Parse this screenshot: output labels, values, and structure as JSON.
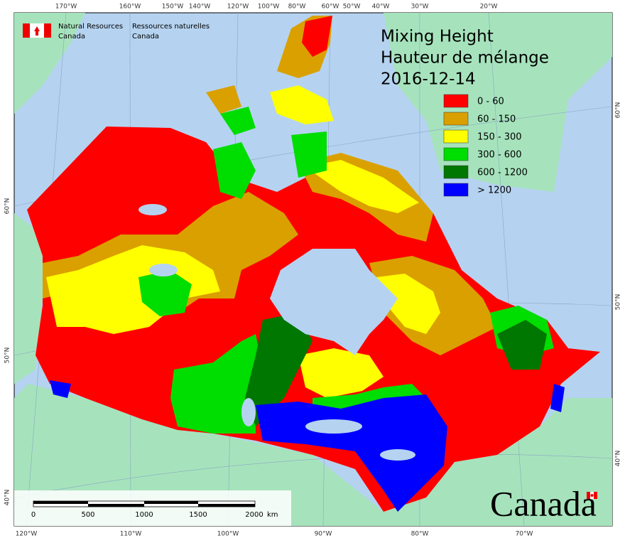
{
  "header": {
    "agency_en": [
      "Natural Resources",
      "Canada"
    ],
    "agency_fr": [
      "Ressources naturelles",
      "Canada"
    ]
  },
  "title": {
    "lines": [
      "Mixing Height",
      "Hauteur de mélange",
      "2016-12-14"
    ]
  },
  "legend": [
    {
      "label": "0 - 60",
      "color": "#ff0000"
    },
    {
      "label": "60 - 150",
      "color": "#daa000"
    },
    {
      "label": "150 - 300",
      "color": "#ffff00"
    },
    {
      "label": "300 - 600",
      "color": "#00dd00"
    },
    {
      "label": "600 - 1200",
      "color": "#007700"
    },
    {
      "label": "> 1200",
      "color": "#0000ff"
    }
  ],
  "graticule": {
    "top": [
      "170°W",
      "160°W",
      "150°W",
      "140°W",
      "120°W",
      "100°W",
      "80°W",
      "60°W",
      "50°W",
      "40°W",
      "30°W",
      "20°W"
    ],
    "bottom": [
      "120°W",
      "110°W",
      "100°W",
      "90°W",
      "80°W",
      "70°W"
    ],
    "left": [
      "60°N",
      "50°N",
      "40°N"
    ],
    "right": [
      "60°N",
      "50°N",
      "40°N"
    ]
  },
  "scale_bar": {
    "labels": [
      "0",
      "500",
      "1000",
      "1500",
      "2000"
    ],
    "unit": "km"
  },
  "wordmark": "Canada"
}
